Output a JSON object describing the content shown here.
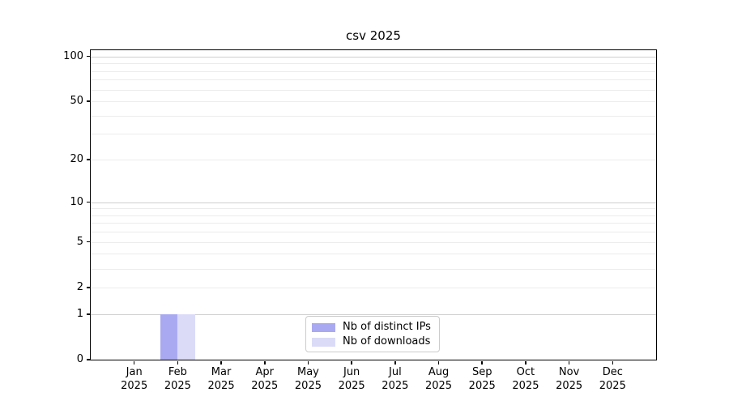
{
  "chart_data": {
    "type": "bar",
    "title": "csv 2025",
    "categories": [
      "Jan 2025",
      "Feb 2025",
      "Mar 2025",
      "Apr 2025",
      "May 2025",
      "Jun 2025",
      "Jul 2025",
      "Aug 2025",
      "Sep 2025",
      "Oct 2025",
      "Nov 2025",
      "Dec 2025"
    ],
    "x_axis": {
      "months": [
        "Jan",
        "Feb",
        "Mar",
        "Apr",
        "May",
        "Jun",
        "Jul",
        "Aug",
        "Sep",
        "Oct",
        "Nov",
        "Dec"
      ],
      "year": "2025"
    },
    "series": [
      {
        "name": "Nb of distinct IPs",
        "color": "#a9a9f2",
        "values": [
          0,
          1,
          0,
          0,
          0,
          0,
          0,
          0,
          0,
          0,
          0,
          0
        ]
      },
      {
        "name": "Nb of downloads",
        "color": "#dbdbf8",
        "values": [
          0,
          1,
          0,
          0,
          0,
          0,
          0,
          0,
          0,
          0,
          0,
          0
        ]
      }
    ],
    "y_axis": {
      "scale": "log1p",
      "ticks": [
        0,
        1,
        2,
        5,
        10,
        20,
        50,
        100
      ],
      "major_gridlines": [
        1,
        10,
        100
      ],
      "minor_gridlines": [
        2,
        3,
        4,
        5,
        6,
        7,
        8,
        9,
        20,
        30,
        40,
        50,
        60,
        70,
        80,
        90
      ],
      "ylim": [
        0,
        110
      ]
    },
    "legend": {
      "position": "lower-center",
      "entries": [
        "Nb of distinct IPs",
        "Nb of downloads"
      ]
    },
    "grid": true
  }
}
